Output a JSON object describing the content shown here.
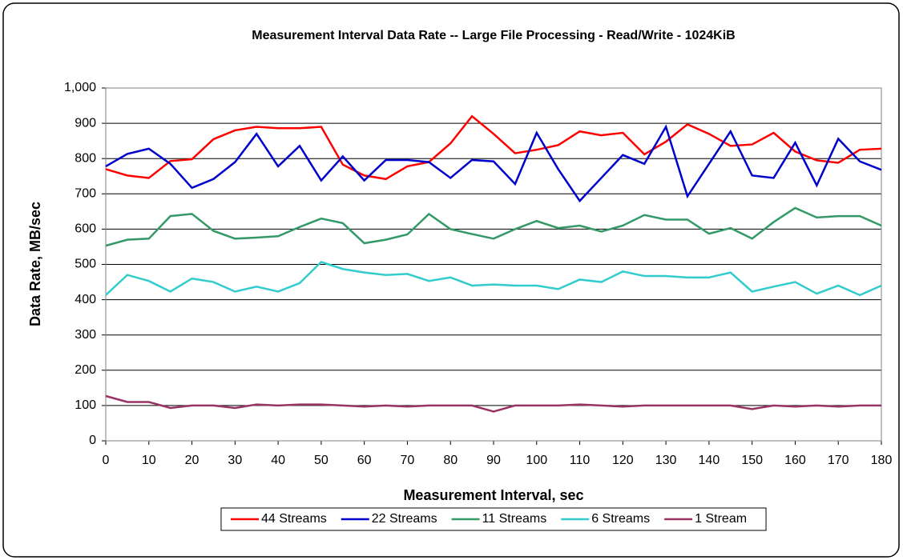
{
  "chart_data": {
    "type": "line",
    "title": "Measurement Interval Data Rate -- Large File Processing - Read/Write - 1024KiB",
    "x_label": "Measurement Interval, sec",
    "y_label": "Data Rate, MB/sec",
    "x": [
      0,
      5,
      10,
      15,
      20,
      25,
      30,
      35,
      40,
      45,
      50,
      55,
      60,
      65,
      70,
      75,
      80,
      85,
      90,
      95,
      100,
      105,
      110,
      115,
      120,
      125,
      130,
      135,
      140,
      145,
      150,
      155,
      160,
      165,
      170,
      175,
      180
    ],
    "series": [
      {
        "name": "44 Streams",
        "color": "#ff0000",
        "values": [
          770,
          752,
          745,
          793,
          798,
          855,
          880,
          890,
          886,
          886,
          890,
          783,
          752,
          742,
          778,
          790,
          843,
          920,
          870,
          815,
          825,
          838,
          877,
          866,
          873,
          812,
          848,
          897,
          870,
          836,
          840,
          873,
          820,
          795,
          788,
          825,
          828
        ]
      },
      {
        "name": "22 Streams",
        "color": "#0000cc",
        "values": [
          778,
          813,
          828,
          785,
          717,
          742,
          790,
          870,
          778,
          836,
          738,
          806,
          738,
          796,
          796,
          790,
          745,
          796,
          792,
          728,
          873,
          770,
          680,
          745,
          810,
          785,
          890,
          693,
          785,
          877,
          752,
          745,
          845,
          724,
          856,
          792,
          768
        ]
      },
      {
        "name": "11 Streams",
        "color": "#339966",
        "values": [
          553,
          570,
          573,
          637,
          643,
          595,
          573,
          576,
          580,
          606,
          630,
          617,
          560,
          570,
          585,
          643,
          600,
          586,
          573,
          600,
          623,
          603,
          610,
          593,
          610,
          640,
          627,
          627,
          587,
          603,
          573,
          620,
          660,
          633,
          637,
          637,
          610
        ]
      },
      {
        "name": "6 Streams",
        "color": "#33cccc",
        "values": [
          413,
          470,
          453,
          423,
          460,
          450,
          423,
          437,
          423,
          447,
          507,
          487,
          477,
          470,
          473,
          453,
          463,
          440,
          443,
          440,
          440,
          430,
          457,
          450,
          480,
          467,
          467,
          463,
          463,
          477,
          423,
          437,
          450,
          417,
          440,
          413,
          440
        ]
      },
      {
        "name": "1 Stream",
        "color": "#993366",
        "values": [
          127,
          110,
          110,
          93,
          100,
          100,
          93,
          103,
          100,
          103,
          103,
          100,
          97,
          100,
          97,
          100,
          100,
          100,
          83,
          100,
          100,
          100,
          103,
          100,
          97,
          100,
          100,
          100,
          100,
          100,
          90,
          100,
          97,
          100,
          97,
          100,
          100
        ]
      }
    ],
    "xlim": [
      0,
      180
    ],
    "xticks": [
      0,
      10,
      20,
      30,
      40,
      50,
      60,
      70,
      80,
      90,
      100,
      110,
      120,
      130,
      140,
      150,
      160,
      170,
      180
    ],
    "ylim": [
      0,
      1000
    ],
    "yticks": [
      0,
      100,
      200,
      300,
      400,
      500,
      600,
      700,
      800,
      900,
      {
        "value": 1000,
        "label": "1,000"
      }
    ],
    "grid": true,
    "legend": "bottom"
  }
}
